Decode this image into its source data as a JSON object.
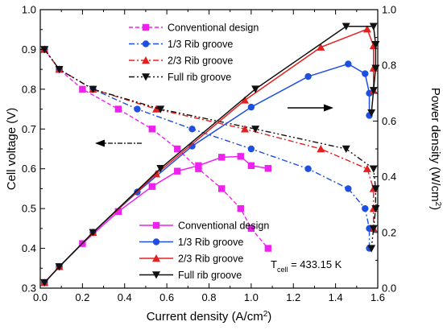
{
  "chart_data": {
    "type": "line",
    "xlabel": "Current density (A/cm",
    "xlabel_sup": "2",
    "xlabel_end": ")",
    "ylabel_left": "Cell voltage (V)",
    "ylabel_right": "Power density (W/cm",
    "ylabel_right_sup": "2",
    "ylabel_right_end": ")",
    "xlim": [
      0.0,
      1.6
    ],
    "ylim_left": [
      0.3,
      1.0
    ],
    "ylim_right": [
      0.0,
      1.0
    ],
    "x_ticks": [
      "0.0",
      "0.2",
      "0.4",
      "0.6",
      "0.8",
      "1.0",
      "1.2",
      "1.4",
      "1.6"
    ],
    "y_left_ticks": [
      "0.3",
      "0.4",
      "0.5",
      "0.6",
      "0.7",
      "0.8",
      "0.9",
      "1.0"
    ],
    "y_right_ticks": [
      "0.0",
      "0.2",
      "0.4",
      "0.6",
      "0.8",
      "1.0"
    ],
    "annotation": {
      "prefix": "T",
      "sub": "cell",
      "rest": " = 433.15 K"
    },
    "legend_upper": {
      "placement": "top-center",
      "entries": [
        "Conventional design",
        "1/3 Rib groove",
        "2/3 Rib groove",
        "Full rib groove"
      ]
    },
    "legend_lower": {
      "placement": "bottom-center",
      "entries": [
        "Conventional design",
        "1/3 Rib groove",
        "2/3 Rib groove",
        "Full rib groove"
      ]
    },
    "series_style": [
      {
        "color": "#ee22ee",
        "marker": "square"
      },
      {
        "color": "#1f4fe0",
        "marker": "circle"
      },
      {
        "color": "#e32020",
        "marker": "triangle-up"
      },
      {
        "color": "#111111",
        "marker": "triangle-down"
      }
    ],
    "arrows": [
      {
        "direction": "left",
        "axis": "left",
        "style": "dash-dot"
      },
      {
        "direction": "right",
        "axis": "right",
        "style": "solid"
      }
    ],
    "voltage_series": [
      {
        "name": "Conventional design",
        "axis": "left",
        "x": [
          0.02,
          0.09,
          0.2,
          0.37,
          0.53,
          0.65,
          0.75,
          0.86,
          0.95,
          1.0,
          1.08
        ],
        "y": [
          0.9,
          0.85,
          0.8,
          0.75,
          0.7,
          0.65,
          0.6,
          0.55,
          0.5,
          0.45,
          0.4
        ]
      },
      {
        "name": "1/3 Rib groove",
        "axis": "left",
        "x": [
          0.02,
          0.09,
          0.25,
          0.46,
          0.72,
          1.0,
          1.27,
          1.46,
          1.54,
          1.56,
          1.56
        ],
        "y": [
          0.9,
          0.85,
          0.8,
          0.75,
          0.7,
          0.65,
          0.6,
          0.55,
          0.5,
          0.45,
          0.4
        ]
      },
      {
        "name": "2/3 Rib groove",
        "axis": "left",
        "x": [
          0.02,
          0.09,
          0.25,
          0.55,
          0.97,
          1.33,
          1.55,
          1.58,
          1.58,
          1.58
        ],
        "y": [
          0.9,
          0.85,
          0.8,
          0.75,
          0.7,
          0.65,
          0.6,
          0.55,
          0.5,
          0.45
        ]
      },
      {
        "name": "Full rib groove",
        "axis": "left",
        "x": [
          0.02,
          0.09,
          0.25,
          0.57,
          1.02,
          1.45,
          1.58,
          1.59,
          1.59,
          1.58,
          1.57
        ],
        "y": [
          0.9,
          0.85,
          0.8,
          0.75,
          0.7,
          0.65,
          0.6,
          0.55,
          0.5,
          0.45,
          0.4
        ]
      }
    ],
    "power_series": [
      {
        "name": "Conventional design",
        "axis": "right",
        "x": [
          0.02,
          0.09,
          0.2,
          0.37,
          0.53,
          0.65,
          0.75,
          0.86,
          0.95,
          1.0,
          1.08
        ],
        "y": [
          0.02,
          0.077,
          0.16,
          0.275,
          0.365,
          0.42,
          0.44,
          0.47,
          0.473,
          0.44,
          0.43
        ]
      },
      {
        "name": "1/3 Rib groove",
        "axis": "right",
        "x": [
          0.02,
          0.09,
          0.25,
          0.46,
          0.72,
          1.0,
          1.27,
          1.46,
          1.54,
          1.56,
          1.56
        ],
        "y": [
          0.02,
          0.077,
          0.2,
          0.345,
          0.51,
          0.65,
          0.76,
          0.805,
          0.77,
          0.7,
          0.62
        ]
      },
      {
        "name": "2/3 Rib groove",
        "axis": "right",
        "x": [
          0.02,
          0.09,
          0.25,
          0.55,
          0.97,
          1.33,
          1.55,
          1.58,
          1.58,
          1.58
        ],
        "y": [
          0.02,
          0.077,
          0.2,
          0.41,
          0.675,
          0.865,
          0.93,
          0.87,
          0.79,
          0.71
        ]
      },
      {
        "name": "Full rib groove",
        "axis": "right",
        "x": [
          0.02,
          0.09,
          0.25,
          0.57,
          1.02,
          1.45,
          1.58,
          1.59,
          1.59,
          1.58,
          1.57
        ],
        "y": [
          0.02,
          0.077,
          0.2,
          0.43,
          0.715,
          0.94,
          0.94,
          0.875,
          0.79,
          0.71,
          0.63
        ]
      }
    ]
  }
}
